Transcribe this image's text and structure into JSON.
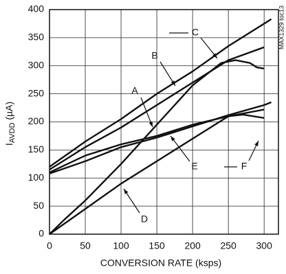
{
  "chart_data": {
    "type": "line",
    "x_label": "CONVERSION RATE (ksps)",
    "y_label_main": "I",
    "y_label_sub": "AVDD",
    "y_label_unit": " (µA)",
    "note": "MAX1329 toc13",
    "xlim": [
      0,
      320
    ],
    "xticks": [
      0,
      50,
      100,
      150,
      200,
      250,
      300
    ],
    "ylim": [
      0,
      400
    ],
    "yticks": [
      0,
      50,
      100,
      150,
      200,
      250,
      300,
      350,
      400
    ],
    "grid": true,
    "series": [
      {
        "name": "A",
        "color": "#111111",
        "x": [
          0,
          20,
          50,
          100,
          150,
          200,
          240,
          260,
          280,
          290,
          300
        ],
        "values": [
          0,
          25,
          60,
          125,
          195,
          265,
          305,
          310,
          305,
          297,
          295
        ]
      },
      {
        "name": "B",
        "color": "#111111",
        "x": [
          0,
          50,
          100,
          150,
          200,
          250,
          300
        ],
        "values": [
          115,
          155,
          190,
          230,
          270,
          310,
          333
        ]
      },
      {
        "name": "C",
        "color": "#111111",
        "x": [
          0,
          50,
          100,
          150,
          200,
          250,
          300,
          310
        ],
        "values": [
          120,
          165,
          205,
          250,
          290,
          335,
          375,
          383
        ]
      },
      {
        "name": "D",
        "color": "#111111",
        "x": [
          0,
          50,
          100,
          150,
          200,
          250,
          270,
          300
        ],
        "values": [
          0,
          45,
          90,
          130,
          170,
          210,
          213,
          207
        ]
      },
      {
        "name": "E",
        "color": "#111111",
        "x": [
          0,
          50,
          100,
          150,
          200,
          250,
          300
        ],
        "values": [
          110,
          140,
          160,
          175,
          195,
          210,
          222
        ]
      },
      {
        "name": "F",
        "color": "#111111",
        "x": [
          0,
          50,
          100,
          150,
          200,
          250,
          300,
          310
        ],
        "values": [
          108,
          130,
          155,
          172,
          192,
          212,
          230,
          235
        ]
      }
    ]
  }
}
